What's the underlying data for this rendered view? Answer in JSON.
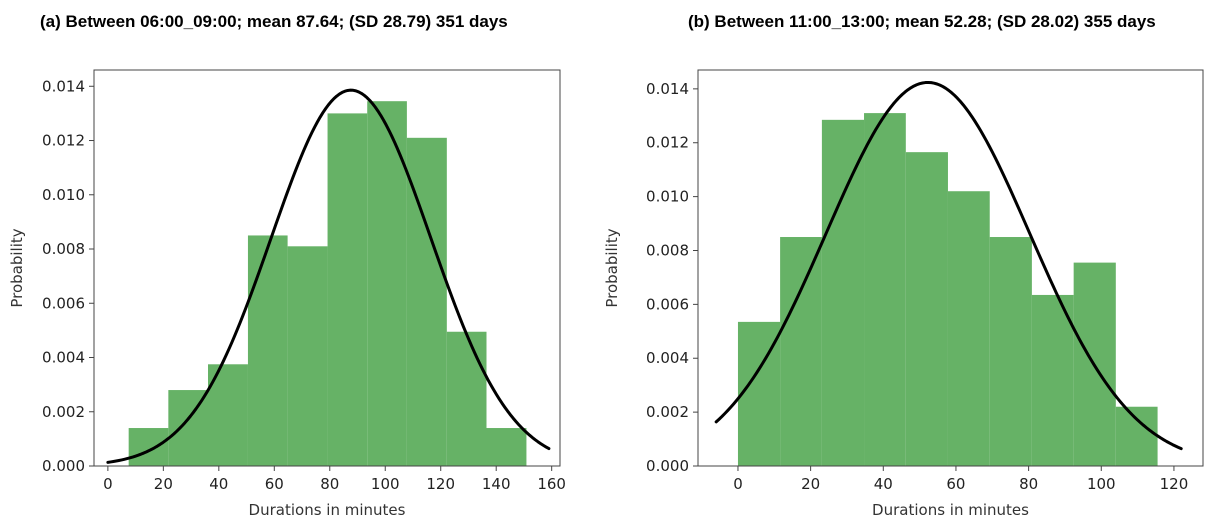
{
  "chart_data": [
    {
      "type": "bar",
      "title": "(a) Between 06:00_09:00; mean 87.64; (SD 28.79) 351 days",
      "xlabel": "Durations in minutes",
      "ylabel": "Probability",
      "xlim": [
        -5,
        163
      ],
      "ylim": [
        0,
        0.0146
      ],
      "xticks": [
        0,
        20,
        40,
        60,
        80,
        100,
        120,
        140,
        160
      ],
      "yticks": [
        0.0,
        0.002,
        0.004,
        0.006,
        0.008,
        0.01,
        0.012,
        0.014
      ],
      "xtick_labels": [
        "0",
        "20",
        "40",
        "60",
        "80",
        "100",
        "120",
        "140",
        "160"
      ],
      "ytick_labels": [
        "0.000",
        "0.002",
        "0.004",
        "0.006",
        "0.008",
        "0.010",
        "0.012",
        "0.014"
      ],
      "bar_color": "#66b266",
      "bins": [
        {
          "x0": 7.5,
          "x1": 21.8,
          "value": 0.0014
        },
        {
          "x0": 21.8,
          "x1": 36.1,
          "value": 0.0028
        },
        {
          "x0": 36.1,
          "x1": 50.5,
          "value": 0.00375
        },
        {
          "x0": 50.5,
          "x1": 64.8,
          "value": 0.0085
        },
        {
          "x0": 64.8,
          "x1": 79.2,
          "value": 0.0081
        },
        {
          "x0": 79.2,
          "x1": 93.5,
          "value": 0.013
        },
        {
          "x0": 93.5,
          "x1": 107.8,
          "value": 0.01345
        },
        {
          "x0": 107.8,
          "x1": 122.2,
          "value": 0.0121
        },
        {
          "x0": 122.2,
          "x1": 136.5,
          "value": 0.00495
        },
        {
          "x0": 136.5,
          "x1": 150.9,
          "value": 0.0014
        }
      ],
      "curve": {
        "mean": 87.64,
        "sd": 28.79,
        "x_start": 0,
        "x_end": 159,
        "color": "#000000"
      }
    },
    {
      "type": "bar",
      "title": "(b) Between 11:00_13:00; mean 52.28; (SD 28.02) 355 days",
      "xlabel": "Durations in minutes",
      "ylabel": "Probability",
      "xlim": [
        -11,
        128
      ],
      "ylim": [
        0,
        0.0147
      ],
      "xticks": [
        0,
        20,
        40,
        60,
        80,
        100,
        120
      ],
      "yticks": [
        0.0,
        0.002,
        0.004,
        0.006,
        0.008,
        0.01,
        0.012,
        0.014
      ],
      "xtick_labels": [
        "0",
        "20",
        "40",
        "60",
        "80",
        "100",
        "120"
      ],
      "ytick_labels": [
        "0.000",
        "0.002",
        "0.004",
        "0.006",
        "0.008",
        "0.010",
        "0.012",
        "0.014"
      ],
      "bar_color": "#66b266",
      "bins": [
        {
          "x0": 0.0,
          "x1": 11.6,
          "value": 0.00535
        },
        {
          "x0": 11.6,
          "x1": 23.1,
          "value": 0.0085
        },
        {
          "x0": 23.1,
          "x1": 34.7,
          "value": 0.01285
        },
        {
          "x0": 34.7,
          "x1": 46.2,
          "value": 0.0131
        },
        {
          "x0": 46.2,
          "x1": 57.8,
          "value": 0.01165
        },
        {
          "x0": 57.8,
          "x1": 69.3,
          "value": 0.0102
        },
        {
          "x0": 69.3,
          "x1": 80.9,
          "value": 0.0085
        },
        {
          "x0": 80.9,
          "x1": 92.4,
          "value": 0.00635
        },
        {
          "x0": 92.4,
          "x1": 104.0,
          "value": 0.00755
        },
        {
          "x0": 104.0,
          "x1": 115.5,
          "value": 0.0022
        }
      ],
      "curve": {
        "mean": 52.28,
        "sd": 28.02,
        "x_start": -6,
        "x_end": 122,
        "color": "#000000"
      }
    }
  ]
}
